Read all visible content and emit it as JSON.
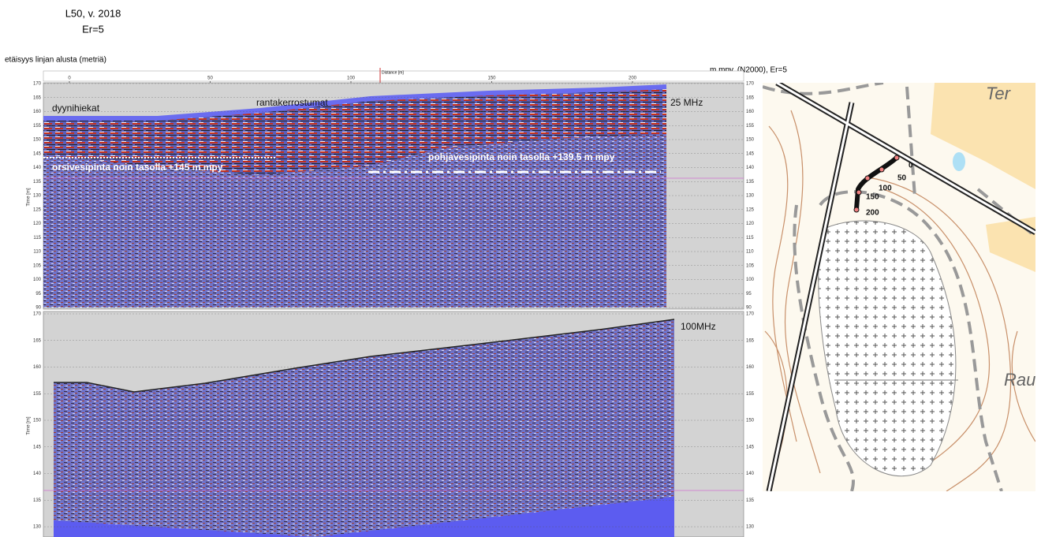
{
  "header": {
    "title": "L50, v. 2018",
    "subtitle": "Er=5"
  },
  "left_axis_label": "etäisyys linjan alusta (metriä)",
  "right_axis_label": "m mpy. (N2000), Er=5",
  "distance_axis": {
    "label": "Distance [m]",
    "ticks": [
      0,
      50,
      100,
      150,
      200
    ]
  },
  "panels": [
    {
      "frequency": "25 MHz",
      "y_label": "Time [m]",
      "yticks": [
        170,
        165,
        160,
        155,
        150,
        145,
        140,
        135,
        130,
        125,
        120,
        115,
        110,
        105,
        100,
        95,
        90
      ],
      "annotations": [
        "dyynihiekat",
        "rantakerrostumat",
        "pohjavesipinta noin tasolla +139.5 m mpy",
        "orsivesipinta noin tasolla +145 m mpy"
      ]
    },
    {
      "frequency": "100MHz",
      "y_label": "Time [m]",
      "yticks": [
        170,
        165,
        160,
        155,
        150,
        145,
        140,
        135,
        130
      ]
    }
  ],
  "map": {
    "place_labels": [
      "Ter",
      "Rau"
    ],
    "route_labels": [
      "0",
      "50",
      "100",
      "150",
      "200"
    ]
  }
}
